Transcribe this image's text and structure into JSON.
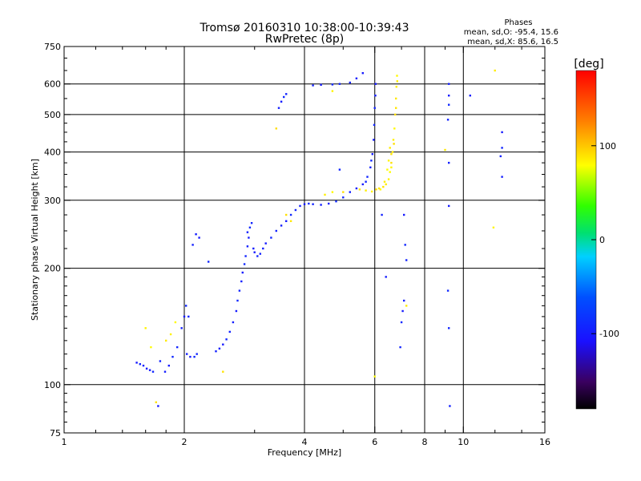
{
  "chart_data": {
    "type": "scatter",
    "title": "Tromsø 20160310 10:38:00-10:39:43",
    "subtitle": "RwPretec (8p)",
    "xlabel": "Frequency [MHz]",
    "ylabel": "Stationary phase Virtual Height [km]",
    "x_scale": "log",
    "y_scale": "log",
    "xlim": [
      1,
      16
    ],
    "ylim": [
      75,
      750
    ],
    "x_ticks": [
      1,
      2,
      4,
      6,
      8,
      10,
      16
    ],
    "x_tick_labels": [
      "1",
      "2",
      "4",
      "6",
      "8",
      "10",
      "16"
    ],
    "y_ticks": [
      75,
      100,
      200,
      300,
      400,
      500,
      600,
      750
    ],
    "y_tick_labels": [
      "75",
      "100",
      "200",
      "300",
      "400",
      "500",
      "600",
      "750"
    ],
    "x_gridlines": [
      2,
      4,
      6,
      8,
      10
    ],
    "y_gridlines": [
      100,
      200,
      300,
      400,
      500,
      600
    ],
    "stats_title": "Phases",
    "stats_lines": [
      "mean, sd,O: -95.4, 15.6",
      "mean, sd,X:  85.6, 16.5"
    ],
    "colorbar": {
      "label": "[deg]",
      "range": [
        -180,
        180
      ],
      "ticks": [
        100,
        0,
        -100
      ],
      "tick_labels": [
        "100",
        "0",
        "-100"
      ]
    },
    "series": [
      {
        "mode": "O",
        "mean_phase": -95.4,
        "sd_phase": 15.6,
        "points": [
          [
            1.52,
            114
          ],
          [
            1.55,
            113
          ],
          [
            1.58,
            112
          ],
          [
            1.61,
            110
          ],
          [
            1.64,
            109
          ],
          [
            1.67,
            108
          ],
          [
            1.74,
            115
          ],
          [
            1.79,
            108
          ],
          [
            1.83,
            112
          ],
          [
            1.87,
            118
          ],
          [
            1.92,
            125
          ],
          [
            1.97,
            140
          ],
          [
            2.0,
            150
          ],
          [
            2.02,
            160
          ],
          [
            2.05,
            150
          ],
          [
            2.03,
            120
          ],
          [
            2.07,
            118
          ],
          [
            2.12,
            118
          ],
          [
            2.15,
            120
          ],
          [
            2.1,
            230
          ],
          [
            2.14,
            245
          ],
          [
            2.18,
            240
          ],
          [
            2.3,
            208
          ],
          [
            2.4,
            122
          ],
          [
            2.45,
            124
          ],
          [
            2.5,
            127
          ],
          [
            2.55,
            131
          ],
          [
            2.6,
            137
          ],
          [
            2.65,
            145
          ],
          [
            2.7,
            155
          ],
          [
            2.72,
            165
          ],
          [
            2.75,
            175
          ],
          [
            2.78,
            185
          ],
          [
            2.8,
            195
          ],
          [
            2.83,
            205
          ],
          [
            2.85,
            215
          ],
          [
            2.88,
            228
          ],
          [
            2.9,
            240
          ],
          [
            2.92,
            255
          ],
          [
            2.95,
            262
          ],
          [
            2.88,
            248
          ],
          [
            2.98,
            225
          ],
          [
            3.0,
            220
          ],
          [
            3.05,
            215
          ],
          [
            3.1,
            218
          ],
          [
            3.15,
            225
          ],
          [
            3.2,
            232
          ],
          [
            3.3,
            240
          ],
          [
            3.4,
            250
          ],
          [
            3.5,
            258
          ],
          [
            3.6,
            265
          ],
          [
            3.7,
            275
          ],
          [
            3.8,
            283
          ],
          [
            3.9,
            290
          ],
          [
            4.0,
            293
          ],
          [
            4.1,
            294
          ],
          [
            4.2,
            293
          ],
          [
            4.4,
            292
          ],
          [
            4.6,
            294
          ],
          [
            4.8,
            298
          ],
          [
            5.0,
            305
          ],
          [
            5.2,
            315
          ],
          [
            5.4,
            322
          ],
          [
            5.6,
            330
          ],
          [
            5.75,
            345
          ],
          [
            5.85,
            365
          ],
          [
            5.92,
            395
          ],
          [
            5.96,
            430
          ],
          [
            5.98,
            470
          ],
          [
            6.0,
            520
          ],
          [
            6.02,
            560
          ],
          [
            6.03,
            600
          ],
          [
            5.88,
            380
          ],
          [
            5.7,
            335
          ],
          [
            3.45,
            520
          ],
          [
            3.5,
            540
          ],
          [
            3.55,
            555
          ],
          [
            3.6,
            565
          ],
          [
            4.2,
            595
          ],
          [
            4.4,
            597
          ],
          [
            4.7,
            598
          ],
          [
            4.9,
            600
          ],
          [
            5.2,
            605
          ],
          [
            5.4,
            620
          ],
          [
            5.6,
            640
          ],
          [
            4.9,
            360
          ],
          [
            6.25,
            275
          ],
          [
            6.4,
            190
          ],
          [
            7.1,
            275
          ],
          [
            7.15,
            230
          ],
          [
            7.2,
            210
          ],
          [
            7.1,
            165
          ],
          [
            7.05,
            155
          ],
          [
            7.0,
            145
          ],
          [
            6.95,
            125
          ],
          [
            9.2,
            600
          ],
          [
            9.2,
            560
          ],
          [
            9.2,
            530
          ],
          [
            9.15,
            485
          ],
          [
            9.2,
            375
          ],
          [
            9.2,
            290
          ],
          [
            9.15,
            175
          ],
          [
            9.2,
            140
          ],
          [
            9.25,
            88
          ],
          [
            10.4,
            560
          ],
          [
            12.5,
            450
          ],
          [
            12.5,
            410
          ],
          [
            12.4,
            390
          ],
          [
            12.5,
            345
          ],
          [
            1.72,
            88
          ]
        ]
      },
      {
        "mode": "X",
        "mean_phase": 85.6,
        "sd_phase": 16.5,
        "points": [
          [
            6.2,
            320
          ],
          [
            6.3,
            325
          ],
          [
            6.4,
            330
          ],
          [
            6.5,
            340
          ],
          [
            6.55,
            355
          ],
          [
            6.6,
            375
          ],
          [
            6.65,
            400
          ],
          [
            6.68,
            430
          ],
          [
            6.72,
            460
          ],
          [
            6.75,
            500
          ],
          [
            6.78,
            550
          ],
          [
            6.8,
            590
          ],
          [
            6.82,
            630
          ],
          [
            6.05,
            320
          ],
          [
            6.15,
            322
          ],
          [
            6.35,
            335
          ],
          [
            6.6,
            365
          ],
          [
            6.7,
            420
          ],
          [
            6.78,
            520
          ],
          [
            6.83,
            610
          ],
          [
            6.5,
            380
          ],
          [
            6.45,
            360
          ],
          [
            6.6,
            395
          ],
          [
            6.55,
            410
          ],
          [
            1.6,
            140
          ],
          [
            1.65,
            125
          ],
          [
            1.7,
            90
          ],
          [
            1.8,
            130
          ],
          [
            1.85,
            135
          ],
          [
            1.9,
            145
          ],
          [
            3.6,
            275
          ],
          [
            3.7,
            265
          ],
          [
            4.5,
            310
          ],
          [
            4.7,
            315
          ],
          [
            5.0,
            315
          ],
          [
            5.5,
            320
          ],
          [
            5.7,
            318
          ],
          [
            5.9,
            316
          ],
          [
            3.4,
            460
          ],
          [
            9.0,
            405
          ],
          [
            12.0,
            650
          ],
          [
            11.9,
            255
          ],
          [
            6.0,
            105
          ],
          [
            2.5,
            108
          ],
          [
            7.2,
            160
          ],
          [
            4.7,
            575
          ]
        ]
      }
    ]
  }
}
